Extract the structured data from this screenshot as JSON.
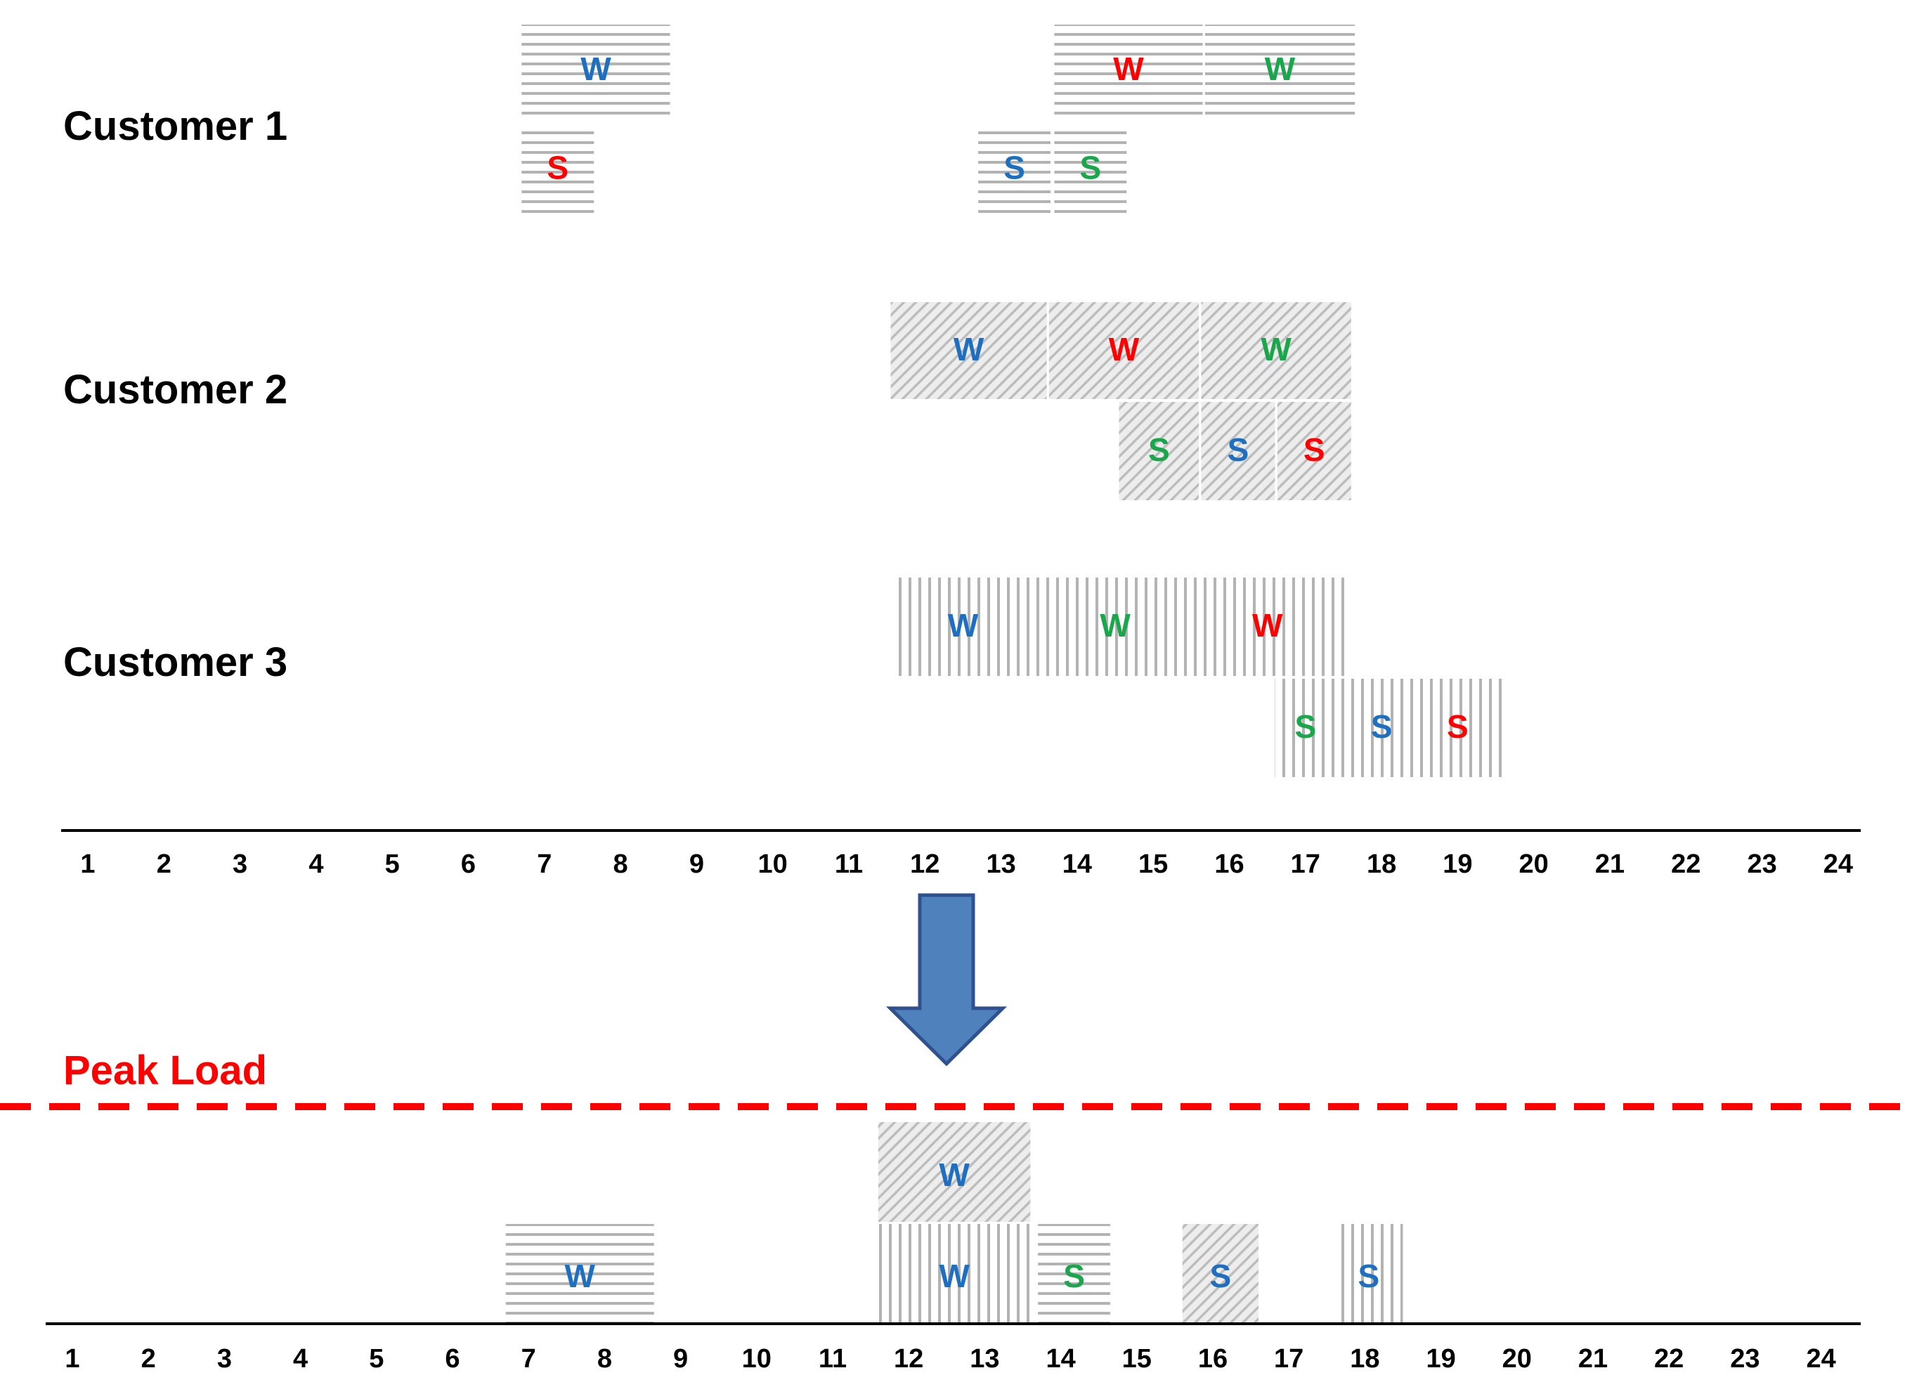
{
  "colors": {
    "blue": "#1F6FC0",
    "red": "#FF0000",
    "green": "#1AA64A",
    "pattern_line": "#B3B3B3",
    "arrow_fill": "#4F81BD",
    "arrow_stroke": "#2F528F",
    "peak": "#FF0000"
  },
  "customers": [
    {
      "label": "Customer 1",
      "pattern": "horizontal-lines",
      "blocks": [
        {
          "start": 6.7,
          "end": 8.65,
          "row": "upper",
          "letter": "W",
          "color": "blue"
        },
        {
          "start": 13.7,
          "end": 15.65,
          "row": "upper",
          "letter": "W",
          "color": "red"
        },
        {
          "start": 15.68,
          "end": 17.65,
          "row": "upper",
          "letter": "W",
          "color": "green"
        },
        {
          "start": 6.7,
          "end": 7.65,
          "row": "lower",
          "letter": "S",
          "color": "red"
        },
        {
          "start": 12.7,
          "end": 13.65,
          "row": "lower",
          "letter": "S",
          "color": "blue"
        },
        {
          "start": 13.7,
          "end": 14.65,
          "row": "lower",
          "letter": "S",
          "color": "green"
        }
      ]
    },
    {
      "label": "Customer 2",
      "pattern": "diagonal-lines",
      "blocks": [
        {
          "start": 11.55,
          "end": 13.6,
          "row": "upper",
          "letter": "W",
          "color": "blue"
        },
        {
          "start": 13.63,
          "end": 15.6,
          "row": "upper",
          "letter": "W",
          "color": "red"
        },
        {
          "start": 15.63,
          "end": 17.6,
          "row": "upper",
          "letter": "W",
          "color": "green"
        },
        {
          "start": 14.55,
          "end": 15.6,
          "row": "lower",
          "letter": "S",
          "color": "green"
        },
        {
          "start": 15.63,
          "end": 16.6,
          "row": "lower",
          "letter": "S",
          "color": "blue"
        },
        {
          "start": 16.63,
          "end": 17.6,
          "row": "lower",
          "letter": "S",
          "color": "red"
        }
      ]
    },
    {
      "label": "Customer 3",
      "pattern": "vertical-lines",
      "blocks": [
        {
          "start": 11.6,
          "end": 17.6,
          "row": "upper",
          "letter": "W",
          "color": "blue",
          "letter_at": 12.5
        },
        {
          "start": 11.6,
          "end": 17.6,
          "row": "upper",
          "letter": "W",
          "color": "green",
          "letter_at": 14.5,
          "no_rect": true
        },
        {
          "start": 11.6,
          "end": 17.6,
          "row": "upper",
          "letter": "W",
          "color": "red",
          "letter_at": 16.5,
          "no_rect": true
        },
        {
          "start": 16.6,
          "end": 19.6,
          "row": "lower",
          "letter": "S",
          "color": "green",
          "letter_at": 17.0
        },
        {
          "start": 16.6,
          "end": 19.6,
          "row": "lower",
          "letter": "S",
          "color": "blue",
          "letter_at": 18.0,
          "no_rect": true
        },
        {
          "start": 16.6,
          "end": 19.6,
          "row": "lower",
          "letter": "S",
          "color": "red",
          "letter_at": 19.0,
          "no_rect": true
        }
      ]
    }
  ],
  "axis_ticks": [
    "1",
    "2",
    "3",
    "4",
    "5",
    "6",
    "7",
    "8",
    "9",
    "10",
    "11",
    "12",
    "13",
    "14",
    "15",
    "16",
    "17",
    "18",
    "19",
    "20",
    "21",
    "22",
    "23",
    "24"
  ],
  "peak_label": "Peak Load",
  "result_blocks": [
    {
      "start": 11.6,
      "end": 13.6,
      "row": "top",
      "letter": "W",
      "color": "blue",
      "pattern": "diagonal-lines"
    },
    {
      "start": 6.7,
      "end": 8.65,
      "row": "bottom",
      "letter": "W",
      "color": "blue",
      "pattern": "horizontal-lines"
    },
    {
      "start": 11.6,
      "end": 13.6,
      "row": "bottom",
      "letter": "W",
      "color": "blue",
      "pattern": "vertical-lines"
    },
    {
      "start": 13.7,
      "end": 14.65,
      "row": "bottom",
      "letter": "S",
      "color": "green",
      "pattern": "horizontal-lines"
    },
    {
      "start": 15.6,
      "end": 16.6,
      "row": "bottom",
      "letter": "S",
      "color": "blue",
      "pattern": "diagonal-lines"
    },
    {
      "start": 17.6,
      "end": 18.5,
      "row": "bottom",
      "letter": "S",
      "color": "blue",
      "pattern": "vertical-lines"
    }
  ]
}
